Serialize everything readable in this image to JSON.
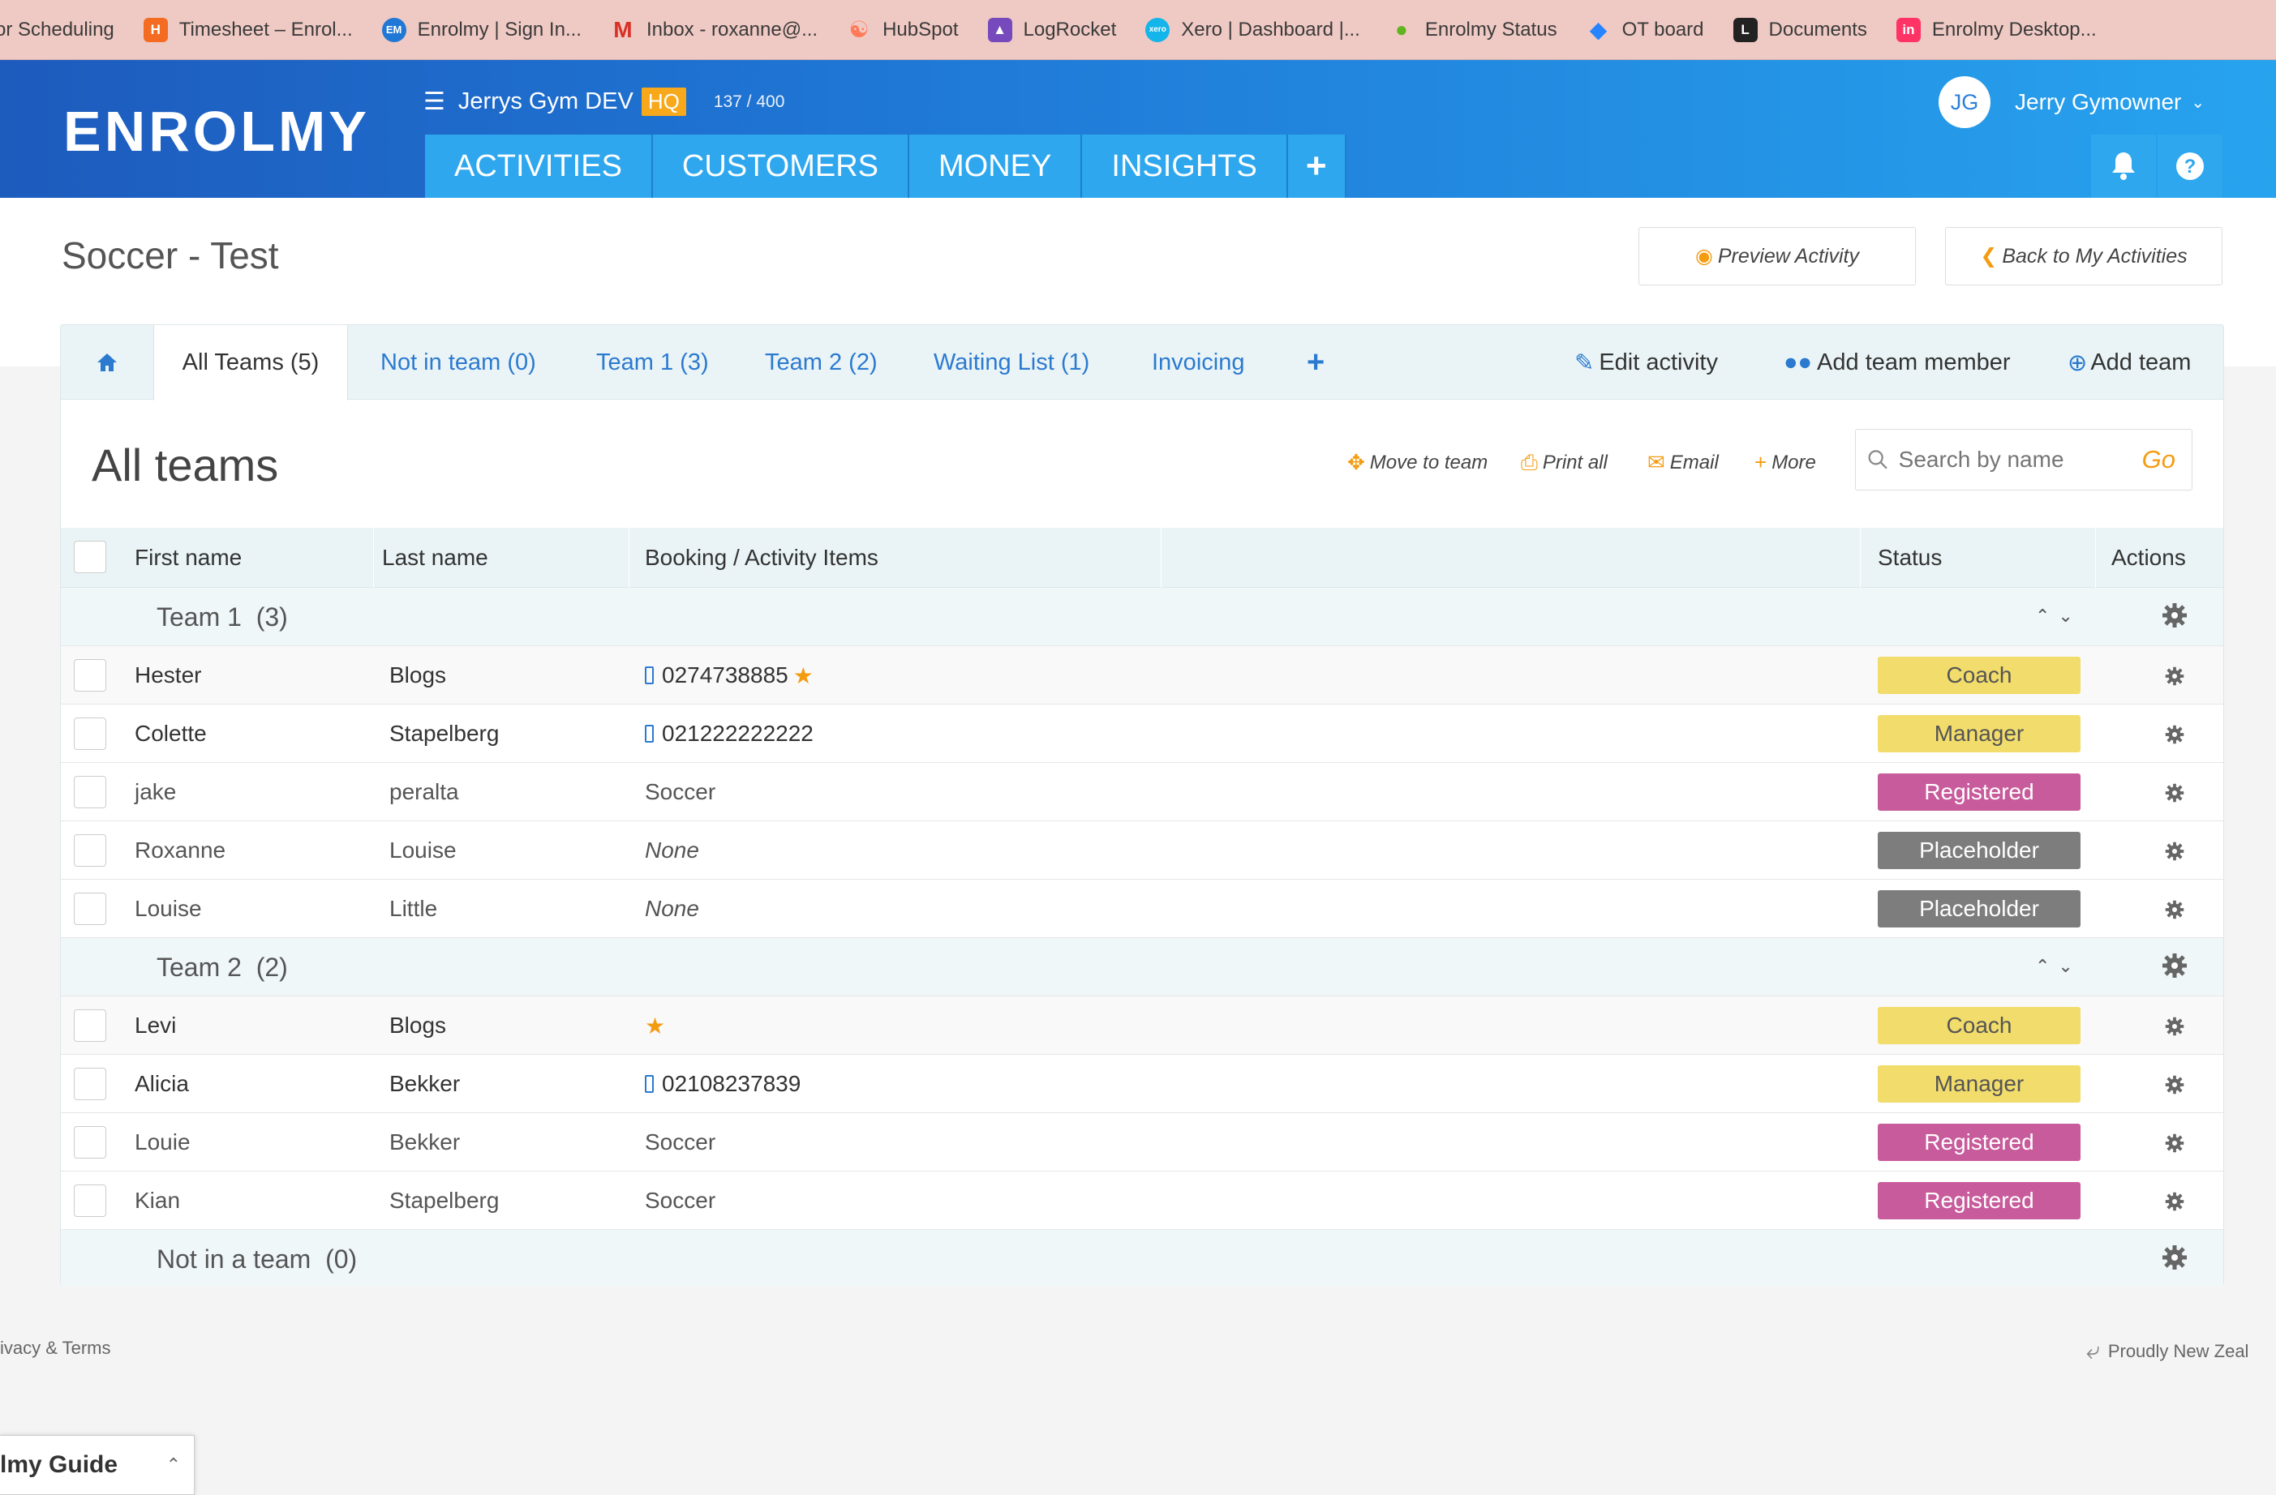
{
  "bookmarks": [
    {
      "label": "or Scheduling",
      "icon": "none",
      "color": ""
    },
    {
      "label": "Timesheet – Enrol...",
      "icon": "harvest-icon",
      "color": "#f36c21"
    },
    {
      "label": "Enrolmy | Sign In...",
      "icon": "enrolmy-icon",
      "color": "#1f78d6"
    },
    {
      "label": "Inbox - roxanne@...",
      "icon": "gmail-icon",
      "color": "#d93025"
    },
    {
      "label": "HubSpot",
      "icon": "hubspot-icon",
      "color": "#ff7a59"
    },
    {
      "label": "LogRocket",
      "icon": "logrocket-icon",
      "color": "#764abc"
    },
    {
      "label": "Xero | Dashboard |...",
      "icon": "xero-icon",
      "color": "#13b5ea"
    },
    {
      "label": "Enrolmy Status",
      "icon": "status-icon",
      "color": "#5fb41f"
    },
    {
      "label": "OT board",
      "icon": "jira-icon",
      "color": "#2684ff"
    },
    {
      "label": "Documents",
      "icon": "documents-icon",
      "color": "#222222"
    },
    {
      "label": "Enrolmy Desktop...",
      "icon": "invision-icon",
      "color": "#ff3366"
    }
  ],
  "header": {
    "logo": "ENROLMY",
    "account_name": "Jerrys Gym DEV",
    "hq_badge": "HQ",
    "count": "137 / 400",
    "nav": [
      "ACTIVITIES",
      "CUSTOMERS",
      "MONEY",
      "INSIGHTS"
    ],
    "user_initials": "JG",
    "user_name": "Jerry Gymowner"
  },
  "page": {
    "title": "Soccer - Test",
    "preview_btn": "Preview Activity",
    "back_btn": "Back to My Activities"
  },
  "tabs": {
    "items": [
      "All Teams (5)",
      "Not in team (0)",
      "Team 1 (3)",
      "Team 2 (2)",
      "Waiting List (1)",
      "Invoicing"
    ],
    "edit": "Edit activity",
    "add_member": "Add team member",
    "add_team": "Add team"
  },
  "section": {
    "title": "All teams",
    "move": "Move to team",
    "print": "Print all",
    "email": "Email",
    "more": "More",
    "search_placeholder": "Search by name",
    "go": "Go"
  },
  "table": {
    "headers": {
      "first": "First name",
      "last": "Last name",
      "booking": "Booking / Activity Items",
      "status": "Status",
      "actions": "Actions"
    },
    "groups": [
      {
        "label": "Team 1",
        "count": "(3)"
      },
      {
        "label": "Team 2",
        "count": "(2)"
      },
      {
        "label": "Not in a team",
        "count": "(0)"
      }
    ],
    "rows": [
      {
        "first": "Hester",
        "last": "Blogs",
        "booking": "0274738885",
        "status": "Coach"
      },
      {
        "first": "Colette",
        "last": "Stapelberg",
        "booking": "021222222222",
        "status": "Manager"
      },
      {
        "first": "jake",
        "last": "peralta",
        "booking": "Soccer",
        "status": "Registered"
      },
      {
        "first": "Roxanne",
        "last": "Louise",
        "booking": "None",
        "status": "Placeholder"
      },
      {
        "first": "Louise",
        "last": "Little",
        "booking": "None",
        "status": "Placeholder"
      },
      {
        "first": "Levi",
        "last": "Blogs",
        "booking": "",
        "status": "Coach"
      },
      {
        "first": "Alicia",
        "last": "Bekker",
        "booking": "02108237839",
        "status": "Manager"
      },
      {
        "first": "Louie",
        "last": "Bekker",
        "booking": "Soccer",
        "status": "Registered"
      },
      {
        "first": "Kian",
        "last": "Stapelberg",
        "booking": "Soccer",
        "status": "Registered"
      }
    ],
    "status_colors": {
      "Coach": "#f2dc6b",
      "Manager": "#f2dc6b",
      "Registered": "#c85b9b",
      "Placeholder": "#7d7d7d"
    }
  },
  "footer": {
    "left": "ivacy & Terms",
    "right": "Proudly New Zeal",
    "guide": "lmy Guide"
  }
}
